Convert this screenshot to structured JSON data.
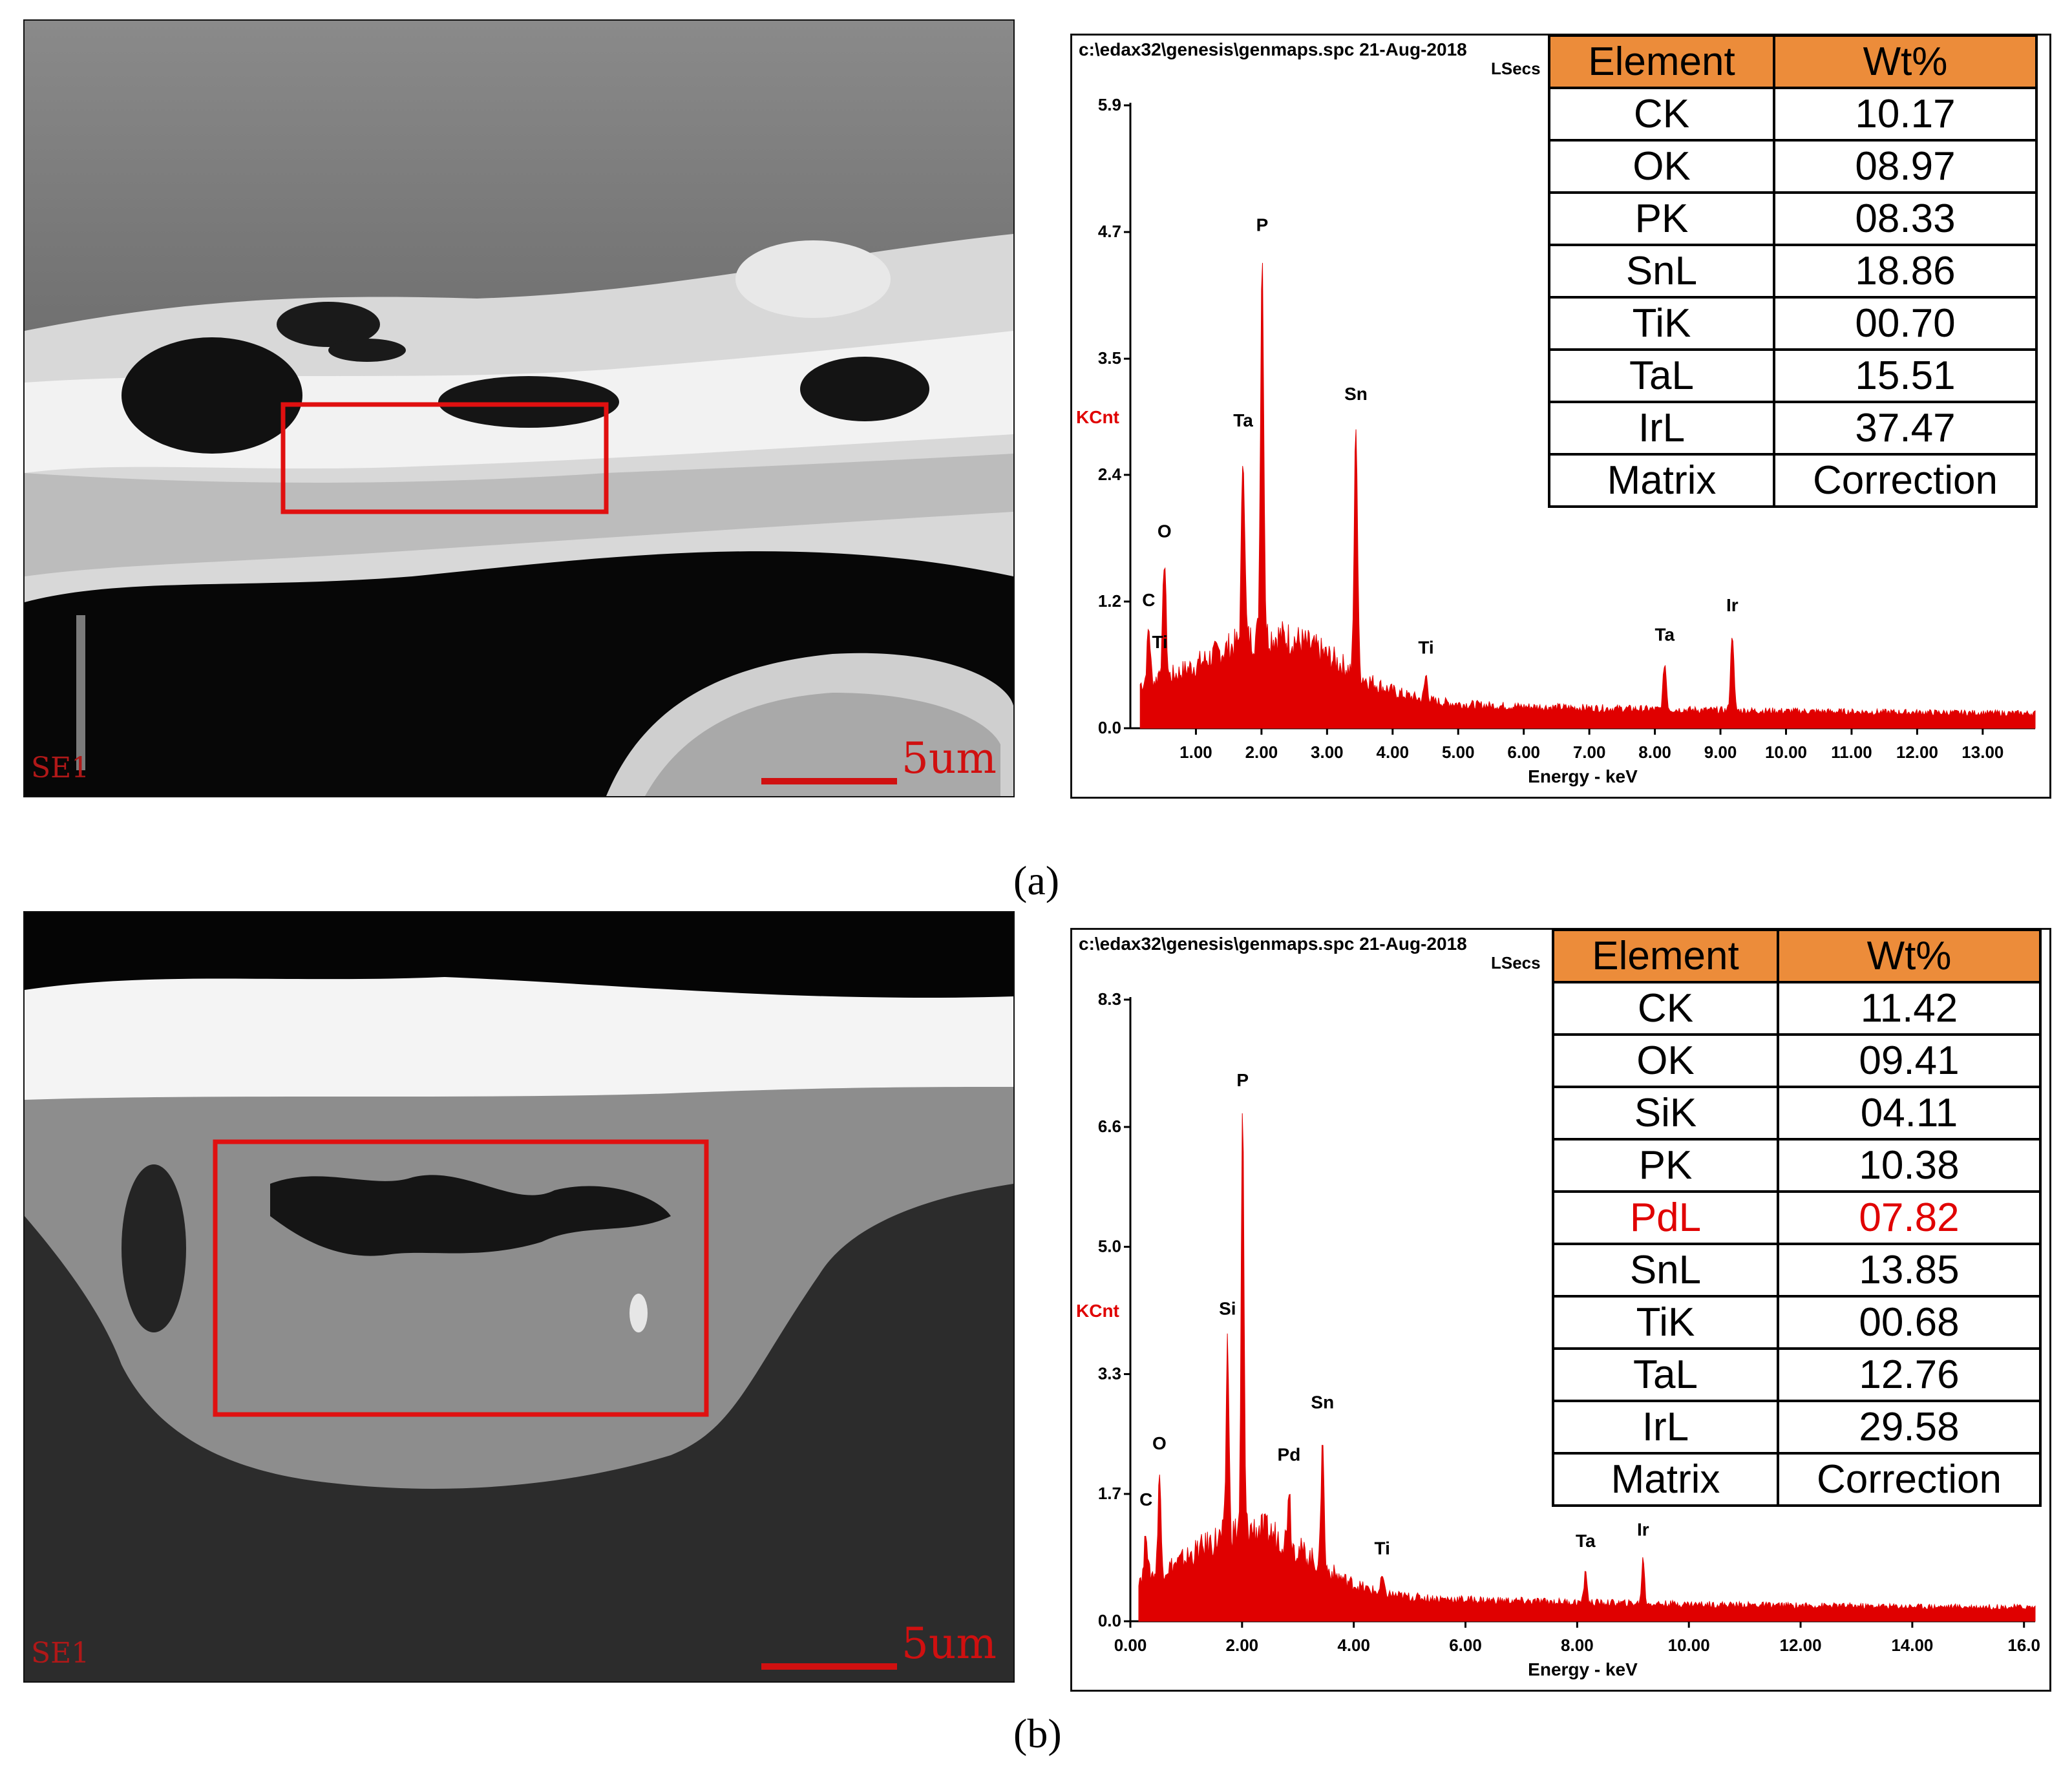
{
  "panels": [
    {
      "caption": "(a)",
      "sem": {
        "detector": "SE1",
        "scale_text": "5um"
      },
      "eds": {
        "path": "c:\\edax32\\genesis\\genmaps.spc  21-Aug-2018",
        "lsecs": "LSecs",
        "chart_data": {
          "type": "line",
          "xlabel": "Energy - keV",
          "ylabel": "KCnt",
          "xlim": [
            0,
            13.8
          ],
          "ylim": [
            0,
            5.9
          ],
          "x_ticks": [
            "1.00",
            "2.00",
            "3.00",
            "4.00",
            "5.00",
            "6.00",
            "7.00",
            "8.00",
            "9.00",
            "10.00",
            "11.00",
            "12.00",
            "13.00"
          ],
          "x_tick_values": [
            1,
            2,
            3,
            4,
            5,
            6,
            7,
            8,
            9,
            10,
            11,
            12,
            13
          ],
          "y_ticks": [
            "0.0",
            "1.2",
            "2.4",
            "3.5",
            "4.7",
            "5.9"
          ],
          "y_tick_values": [
            0,
            1.2,
            2.4,
            3.5,
            4.7,
            5.9
          ],
          "peaks": [
            {
              "label": "C",
              "x": 0.28,
              "y": 0.95
            },
            {
              "label": "O",
              "x": 0.52,
              "y": 1.6
            },
            {
              "label": "Ti",
              "x": 0.45,
              "y": 0.55
            },
            {
              "label": "Ta",
              "x": 1.72,
              "y": 2.65
            },
            {
              "label": "P",
              "x": 2.01,
              "y": 4.5
            },
            {
              "label": "Sn",
              "x": 3.44,
              "y": 2.9
            },
            {
              "label": "Ti",
              "x": 4.51,
              "y": 0.5
            },
            {
              "label": "Ta",
              "x": 8.15,
              "y": 0.62
            },
            {
              "label": "Ir",
              "x": 9.18,
              "y": 0.9
            }
          ]
        },
        "table": {
          "headers": [
            "Element",
            "Wt%"
          ],
          "rows": [
            [
              "CK",
              "10.17"
            ],
            [
              "OK",
              "08.97"
            ],
            [
              "PK",
              "08.33"
            ],
            [
              "SnL",
              "18.86"
            ],
            [
              "TiK",
              "00.70"
            ],
            [
              "TaL",
              "15.51"
            ],
            [
              "IrL",
              "37.47"
            ],
            [
              "Matrix",
              "Correction"
            ]
          ],
          "highlight_row": -1
        }
      }
    },
    {
      "caption": "(b)",
      "sem": {
        "detector": "SE1",
        "scale_text": "5um"
      },
      "eds": {
        "path": "c:\\edax32\\genesis\\genmaps.spc  21-Aug-2018",
        "lsecs": "LSecs",
        "chart_data": {
          "type": "line",
          "xlabel": "Energy - keV",
          "ylabel": "KCnt",
          "xlim": [
            0,
            16.2
          ],
          "ylim": [
            0,
            8.3
          ],
          "x_ticks": [
            "0.00",
            "2.00",
            "4.00",
            "6.00",
            "8.00",
            "10.00",
            "12.00",
            "14.00",
            "16.0"
          ],
          "x_tick_values": [
            0,
            2,
            4,
            6,
            8,
            10,
            12,
            14,
            16
          ],
          "y_ticks": [
            "0.0",
            "1.7",
            "3.3",
            "5.0",
            "6.6",
            "8.3"
          ],
          "y_tick_values": [
            0,
            1.7,
            3.3,
            5.0,
            6.6,
            8.3
          ],
          "peaks": [
            {
              "label": "C",
              "x": 0.28,
              "y": 1.25
            },
            {
              "label": "O",
              "x": 0.52,
              "y": 2.0
            },
            {
              "label": "Si",
              "x": 1.74,
              "y": 3.8
            },
            {
              "label": "P",
              "x": 2.01,
              "y": 6.85
            },
            {
              "label": "Pd",
              "x": 2.84,
              "y": 1.85
            },
            {
              "label": "Sn",
              "x": 3.44,
              "y": 2.55
            },
            {
              "label": "Ti",
              "x": 4.51,
              "y": 0.6
            },
            {
              "label": "Ta",
              "x": 8.15,
              "y": 0.7
            },
            {
              "label": "Ir",
              "x": 9.18,
              "y": 0.85
            }
          ]
        },
        "table": {
          "headers": [
            "Element",
            "Wt%"
          ],
          "rows": [
            [
              "CK",
              "11.42"
            ],
            [
              "OK",
              "09.41"
            ],
            [
              "SiK",
              "04.11"
            ],
            [
              "PK",
              "10.38"
            ],
            [
              "PdL",
              "07.82"
            ],
            [
              "SnL",
              "13.85"
            ],
            [
              "TiK",
              "00.68"
            ],
            [
              "TaL",
              "12.76"
            ],
            [
              "IrL",
              "29.58"
            ],
            [
              "Matrix",
              "Correction"
            ]
          ],
          "highlight_row": 4
        }
      }
    }
  ],
  "colors": {
    "spectrum": "#e00000",
    "header_fill": "#ec8c3a",
    "highlight": "#e00000"
  }
}
